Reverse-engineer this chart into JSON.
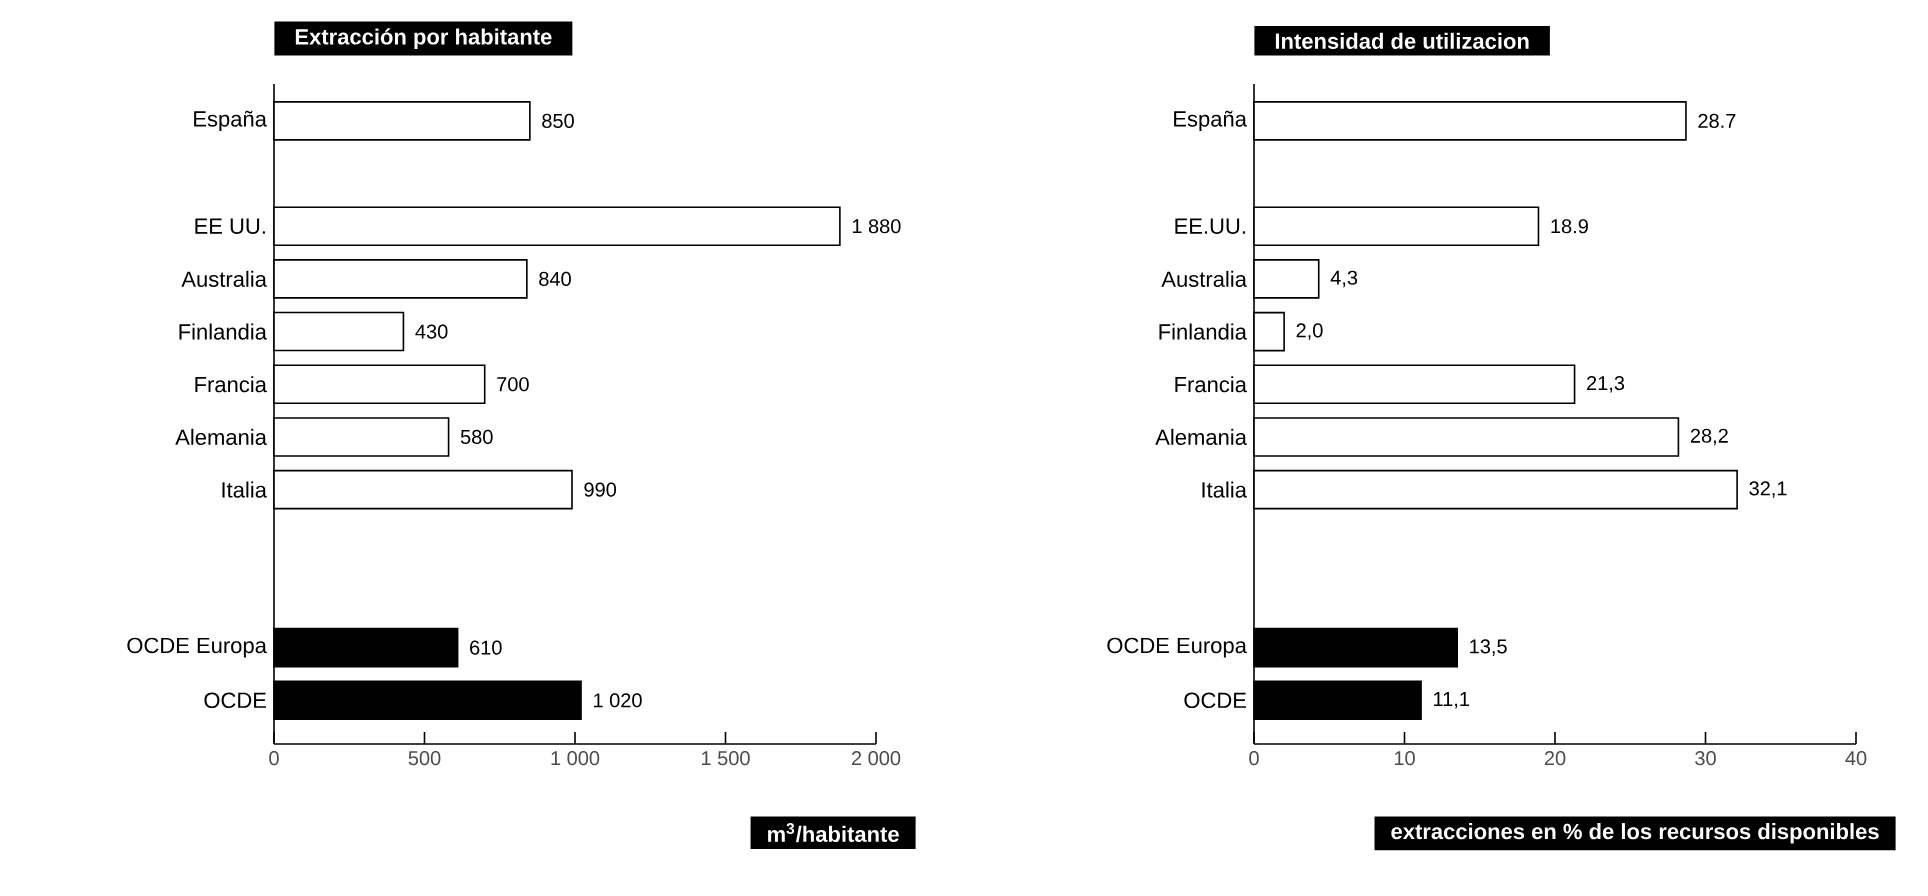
{
  "chart_data": [
    {
      "type": "bar",
      "orientation": "horizontal",
      "title": "Extracción por habitante",
      "xlabel": "m$^{3}$/habitante",
      "categories": [
        "España",
        null,
        "EE UU.",
        "Australia",
        "Finlandia",
        "Francia",
        "Alemania",
        "Italia",
        null,
        null,
        "OCDE Europa",
        "OCDE"
      ],
      "values": [
        850,
        null,
        1880,
        840,
        430,
        700,
        580,
        990,
        null,
        null,
        610,
        1020
      ],
      "value_labels": [
        "850",
        null,
        "1 880",
        "840",
        "430",
        "700",
        "580",
        "990",
        null,
        null,
        "610",
        "1 020"
      ],
      "colors": [
        "#ffffff",
        null,
        "#ffffff",
        "#ffffff",
        "#ffffff",
        "#ffffff",
        "#ffffff",
        "#ffffff",
        null,
        null,
        "#000000",
        "#000000"
      ],
      "xlim": [
        0,
        2000
      ],
      "xticks": [
        0,
        500,
        {
          "value": 1000,
          "label": "1 000"
        },
        {
          "value": 1500,
          "label": "1 500"
        },
        {
          "value": 2000,
          "label": "2 000"
        }
      ]
    },
    {
      "type": "bar",
      "orientation": "horizontal",
      "title": "Intensidad de utilizacion",
      "xlabel": "extracciones en % de los recursos disponibles",
      "categories": [
        "España",
        null,
        "EE.UU.",
        "Australia",
        "Finlandia",
        "Francia",
        "Alemania",
        "Italia",
        null,
        null,
        "OCDE Europa",
        "OCDE"
      ],
      "values": [
        28.7,
        null,
        18.9,
        4.3,
        2.0,
        21.3,
        28.2,
        32.1,
        null,
        null,
        13.5,
        11.1
      ],
      "value_labels": [
        "28.7",
        null,
        "18.9",
        "4,3",
        "2,0",
        "21,3",
        "28,2",
        "32,1",
        null,
        null,
        "13,5",
        "11,1"
      ],
      "colors": [
        "#ffffff",
        null,
        "#ffffff",
        "#ffffff",
        "#ffffff",
        "#ffffff",
        "#ffffff",
        "#ffffff",
        null,
        null,
        "#000000",
        "#000000"
      ],
      "xlim": [
        0,
        40
      ],
      "xticks": [
        0,
        10,
        20,
        30,
        40
      ]
    }
  ]
}
